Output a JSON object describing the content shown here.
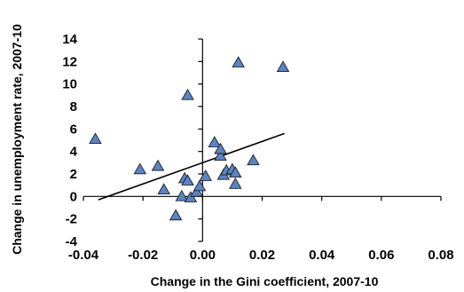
{
  "chart_data": {
    "type": "scatter",
    "title": "",
    "xlabel": "Change in the Gini coefficient, 2007-10",
    "ylabel": "Change in unemployment rate, 2007-10",
    "xlim": [
      -0.04,
      0.08
    ],
    "ylim": [
      -4,
      14
    ],
    "x_ticks": [
      -0.04,
      -0.02,
      0.0,
      0.02,
      0.04,
      0.06,
      0.08
    ],
    "x_tick_labels": [
      "-0.04",
      "-0.02",
      "0.00",
      "0.02",
      "0.04",
      "0.06",
      "0.08"
    ],
    "y_ticks": [
      -4,
      -2,
      0,
      2,
      4,
      6,
      8,
      10,
      12,
      14
    ],
    "y_tick_labels": [
      "-4",
      "-2",
      "0",
      "2",
      "4",
      "6",
      "8",
      "10",
      "12",
      "14"
    ],
    "grid": false,
    "legend": "none",
    "marker": "triangle",
    "marker_color": "#5b84c4",
    "marker_edge_color": "#1f1f1f",
    "points": [
      {
        "x": -0.036,
        "y": 5.1
      },
      {
        "x": -0.021,
        "y": 2.4
      },
      {
        "x": -0.015,
        "y": 2.7
      },
      {
        "x": -0.013,
        "y": 0.6
      },
      {
        "x": -0.009,
        "y": -1.7
      },
      {
        "x": -0.007,
        "y": 0.0
      },
      {
        "x": -0.006,
        "y": 1.6
      },
      {
        "x": -0.005,
        "y": 1.4
      },
      {
        "x": -0.005,
        "y": 9.0
      },
      {
        "x": -0.004,
        "y": -0.1
      },
      {
        "x": -0.002,
        "y": 0.4
      },
      {
        "x": -0.001,
        "y": 0.9
      },
      {
        "x": 0.001,
        "y": 1.8
      },
      {
        "x": 0.004,
        "y": 4.8
      },
      {
        "x": 0.006,
        "y": 3.6
      },
      {
        "x": 0.006,
        "y": 4.2
      },
      {
        "x": 0.007,
        "y": 1.9
      },
      {
        "x": 0.008,
        "y": 2.3
      },
      {
        "x": 0.01,
        "y": 2.4
      },
      {
        "x": 0.011,
        "y": 2.1
      },
      {
        "x": 0.011,
        "y": 1.1
      },
      {
        "x": 0.012,
        "y": 11.9
      },
      {
        "x": 0.017,
        "y": 3.2
      },
      {
        "x": 0.027,
        "y": 11.5
      }
    ],
    "trendline": {
      "x": [
        -0.035,
        0.0275
      ],
      "y": [
        -0.3,
        5.6
      ],
      "color": "#000000"
    }
  }
}
